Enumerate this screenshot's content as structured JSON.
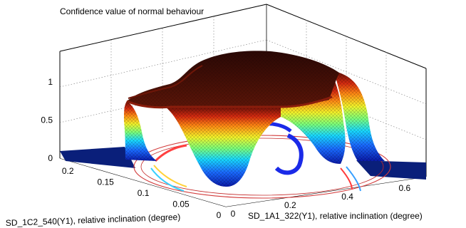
{
  "chart_data": {
    "type": "surface",
    "title": "Confidence value of normal behaviour",
    "xlabel": "SD_1A1_322(Y1), relative inclination (degree)",
    "ylabel": "SD_1C2_540(Y1), relative inclination (degree)",
    "zlabel": "",
    "x_ticks": [
      "0",
      "0.2",
      "0.4",
      "0.6"
    ],
    "y_ticks": [
      "0",
      "0.05",
      "0.1",
      "0.15",
      "0.2"
    ],
    "z_ticks": [
      "0",
      "0.5",
      "1"
    ],
    "xlim": [
      0,
      0.7
    ],
    "ylim": [
      0,
      0.22
    ],
    "zlim": [
      0,
      1.4
    ],
    "grid": true,
    "colormap": "jet",
    "colors": {
      "plateau": "#3a0a06",
      "ridge": "#7a1a0c",
      "contour_red": "#c83a3a",
      "contour_blue": "#1a2ae8"
    },
    "surface_description_values": {
      "plateau_level": 1.0,
      "floor_level": 0.0
    }
  }
}
